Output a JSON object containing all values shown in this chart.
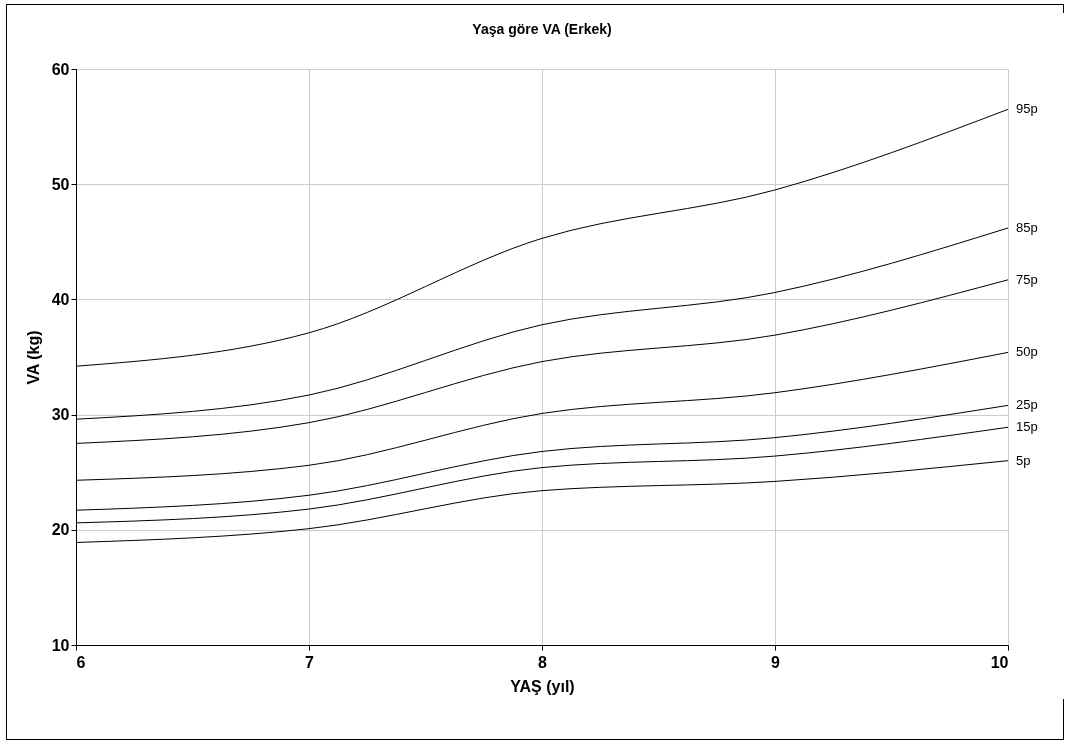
{
  "chart_data": {
    "type": "line",
    "title": "Yaşa göre VA (Erkek)",
    "xlabel": "YAŞ (yıl)",
    "ylabel": "VA (kg)",
    "x": [
      6,
      7,
      8,
      9,
      10
    ],
    "xlim": [
      6,
      10
    ],
    "xticks": [
      6,
      7,
      8,
      9,
      10
    ],
    "ylim": [
      10,
      60
    ],
    "yticks": [
      10,
      20,
      30,
      40,
      50,
      60
    ],
    "grid": true,
    "legend": false,
    "marker": "none",
    "line_style": "solid",
    "series": [
      {
        "name": "95p",
        "color": "#000000",
        "values": [
          34.2,
          37.1,
          45.3,
          49.5,
          56.5
        ]
      },
      {
        "name": "85p",
        "color": "#000000",
        "values": [
          29.6,
          31.7,
          37.8,
          40.6,
          46.2
        ]
      },
      {
        "name": "75p",
        "color": "#000000",
        "values": [
          27.5,
          29.3,
          34.6,
          36.9,
          41.7
        ]
      },
      {
        "name": "50p",
        "color": "#000000",
        "values": [
          24.3,
          25.6,
          30.1,
          31.9,
          35.4
        ]
      },
      {
        "name": "25p",
        "color": "#000000",
        "values": [
          21.7,
          23.0,
          26.8,
          28.0,
          30.8
        ]
      },
      {
        "name": "15p",
        "color": "#000000",
        "values": [
          20.6,
          21.8,
          25.4,
          26.4,
          28.9
        ]
      },
      {
        "name": "5p",
        "color": "#000000",
        "values": [
          18.9,
          20.1,
          23.4,
          24.2,
          26.0
        ]
      }
    ]
  }
}
